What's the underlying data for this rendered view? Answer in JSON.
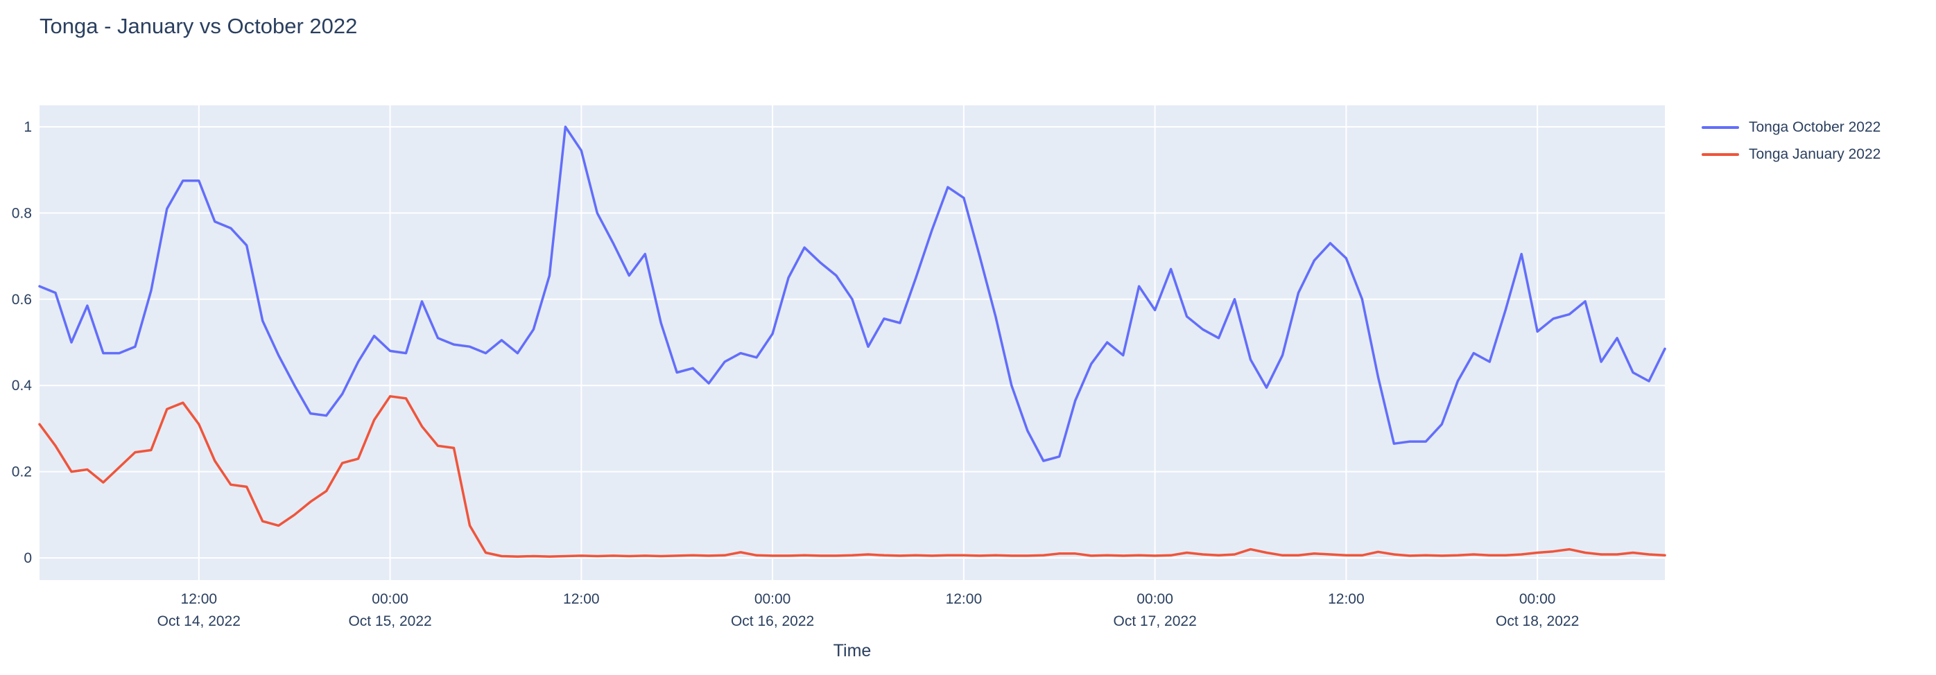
{
  "title": "Tonga - January vs October 2022",
  "colors": {
    "page_background": "#ffffff",
    "plot_background": "#e5ecf6",
    "grid": "#ffffff",
    "text": "#2a3f5f",
    "series_october": "#636efa",
    "series_january": "#ef553b"
  },
  "legend": {
    "position": "top-right",
    "items": [
      {
        "label": "Tonga October 2022",
        "color": "#636efa"
      },
      {
        "label": "Tonga January 2022",
        "color": "#ef553b"
      }
    ]
  },
  "x_axis": {
    "title": "Time",
    "ticks": [
      {
        "hours_from_start": 10,
        "line1": "12:00",
        "line2": "Oct 14, 2022"
      },
      {
        "hours_from_start": 22,
        "line1": "00:00",
        "line2": "Oct 15, 2022"
      },
      {
        "hours_from_start": 34,
        "line1": "12:00",
        "line2": ""
      },
      {
        "hours_from_start": 46,
        "line1": "00:00",
        "line2": "Oct 16, 2022"
      },
      {
        "hours_from_start": 58,
        "line1": "12:00",
        "line2": ""
      },
      {
        "hours_from_start": 70,
        "line1": "00:00",
        "line2": "Oct 17, 2022"
      },
      {
        "hours_from_start": 82,
        "line1": "12:00",
        "line2": ""
      },
      {
        "hours_from_start": 94,
        "line1": "00:00",
        "line2": "Oct 18, 2022"
      }
    ]
  },
  "y_axis": {
    "tick_labels": [
      "0",
      "0.2",
      "0.4",
      "0.6",
      "0.8",
      "1"
    ],
    "tick_values": [
      0,
      0.2,
      0.4,
      0.6,
      0.8,
      1
    ]
  },
  "chart_data": {
    "type": "line",
    "title": "Tonga - January vs October 2022",
    "xlabel": "Time",
    "ylabel": "",
    "grid": true,
    "legend_position": "top-right",
    "x_start": "2022-10-14 02:00",
    "x_step_hours": 1,
    "x_range": [
      "2022-10-14 02:00",
      "2022-10-18 08:00"
    ],
    "y_gridline_range": [
      0,
      1
    ],
    "series": [
      {
        "name": "Tonga October 2022",
        "color": "#636efa",
        "values": [
          0.63,
          0.615,
          0.5,
          0.585,
          0.475,
          0.475,
          0.49,
          0.62,
          0.81,
          0.875,
          0.875,
          0.78,
          0.765,
          0.725,
          0.55,
          0.47,
          0.4,
          0.335,
          0.33,
          0.38,
          0.455,
          0.515,
          0.48,
          0.475,
          0.595,
          0.51,
          0.495,
          0.49,
          0.475,
          0.505,
          0.475,
          0.53,
          0.655,
          1.0,
          0.945,
          0.8,
          0.73,
          0.655,
          0.705,
          0.545,
          0.43,
          0.44,
          0.405,
          0.455,
          0.475,
          0.465,
          0.52,
          0.65,
          0.72,
          0.685,
          0.655,
          0.6,
          0.49,
          0.555,
          0.545,
          0.65,
          0.76,
          0.86,
          0.835,
          0.7,
          0.56,
          0.4,
          0.295,
          0.225,
          0.235,
          0.365,
          0.45,
          0.5,
          0.47,
          0.63,
          0.575,
          0.67,
          0.56,
          0.53,
          0.51,
          0.6,
          0.46,
          0.395,
          0.47,
          0.615,
          0.69,
          0.73,
          0.695,
          0.6,
          0.42,
          0.265,
          0.27,
          0.27,
          0.31,
          0.41,
          0.475,
          0.455,
          0.575,
          0.705,
          0.525,
          0.555,
          0.565,
          0.595,
          0.455,
          0.51,
          0.43,
          0.41,
          0.485
        ]
      },
      {
        "name": "Tonga January 2022",
        "color": "#ef553b",
        "values": [
          0.31,
          0.26,
          0.2,
          0.205,
          0.175,
          0.21,
          0.245,
          0.25,
          0.345,
          0.36,
          0.31,
          0.225,
          0.17,
          0.165,
          0.085,
          0.075,
          0.1,
          0.13,
          0.155,
          0.22,
          0.23,
          0.32,
          0.375,
          0.37,
          0.305,
          0.26,
          0.255,
          0.075,
          0.012,
          0.004,
          0.003,
          0.004,
          0.003,
          0.004,
          0.005,
          0.004,
          0.005,
          0.004,
          0.005,
          0.004,
          0.005,
          0.006,
          0.005,
          0.006,
          0.013,
          0.006,
          0.005,
          0.005,
          0.006,
          0.005,
          0.005,
          0.006,
          0.008,
          0.006,
          0.005,
          0.006,
          0.005,
          0.006,
          0.006,
          0.005,
          0.006,
          0.005,
          0.005,
          0.006,
          0.01,
          0.01,
          0.005,
          0.006,
          0.005,
          0.006,
          0.005,
          0.006,
          0.012,
          0.008,
          0.006,
          0.008,
          0.02,
          0.012,
          0.006,
          0.006,
          0.01,
          0.008,
          0.006,
          0.006,
          0.014,
          0.008,
          0.005,
          0.006,
          0.005,
          0.006,
          0.008,
          0.006,
          0.006,
          0.008,
          0.012,
          0.015,
          0.02,
          0.012,
          0.008,
          0.008,
          0.012,
          0.008,
          0.006
        ]
      }
    ]
  }
}
